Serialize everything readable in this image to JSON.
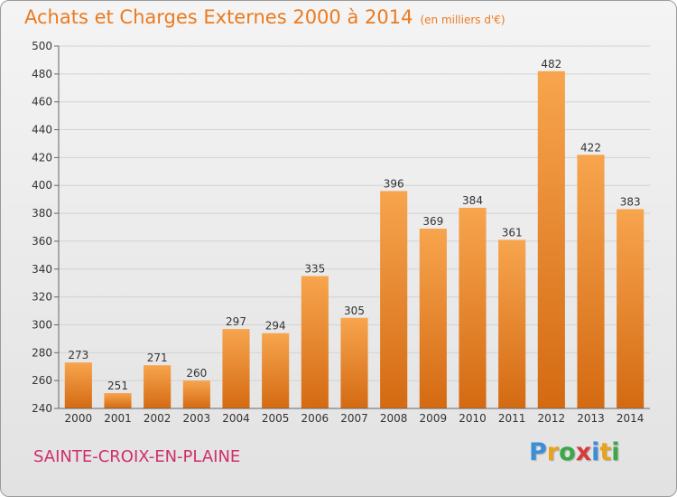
{
  "title": "Achats et Charges Externes 2000 à 2014",
  "unit": "(en milliers d'€)",
  "city": "SAINTE-CROIX-EN-PLAINE",
  "logo": {
    "text": "Proxiti",
    "letters": [
      "P",
      "r",
      "o",
      "x",
      "i",
      "t",
      "i"
    ],
    "colors": [
      "#3a8fd8",
      "#e9a21a",
      "#3aa847",
      "#d83a3a",
      "#3a8fd8",
      "#e9a21a",
      "#3aa847"
    ]
  },
  "colors": {
    "accent": "#ec7a1f",
    "bar_top": "#f7a54e",
    "bar_bottom": "#d46a12",
    "city": "#cf2f6b"
  },
  "chart_data": {
    "type": "bar",
    "categories": [
      "2000",
      "2001",
      "2002",
      "2003",
      "2004",
      "2005",
      "2006",
      "2007",
      "2008",
      "2009",
      "2010",
      "2011",
      "2012",
      "2013",
      "2014"
    ],
    "values": [
      273,
      251,
      271,
      260,
      297,
      294,
      335,
      305,
      396,
      369,
      384,
      361,
      482,
      422,
      383
    ],
    "title": "Achats et Charges Externes 2000 à 2014",
    "ylim": [
      240,
      500
    ],
    "yticks": [
      240,
      260,
      280,
      300,
      320,
      340,
      360,
      380,
      400,
      420,
      440,
      460,
      480,
      500
    ],
    "grid": true,
    "data_labels": true
  }
}
